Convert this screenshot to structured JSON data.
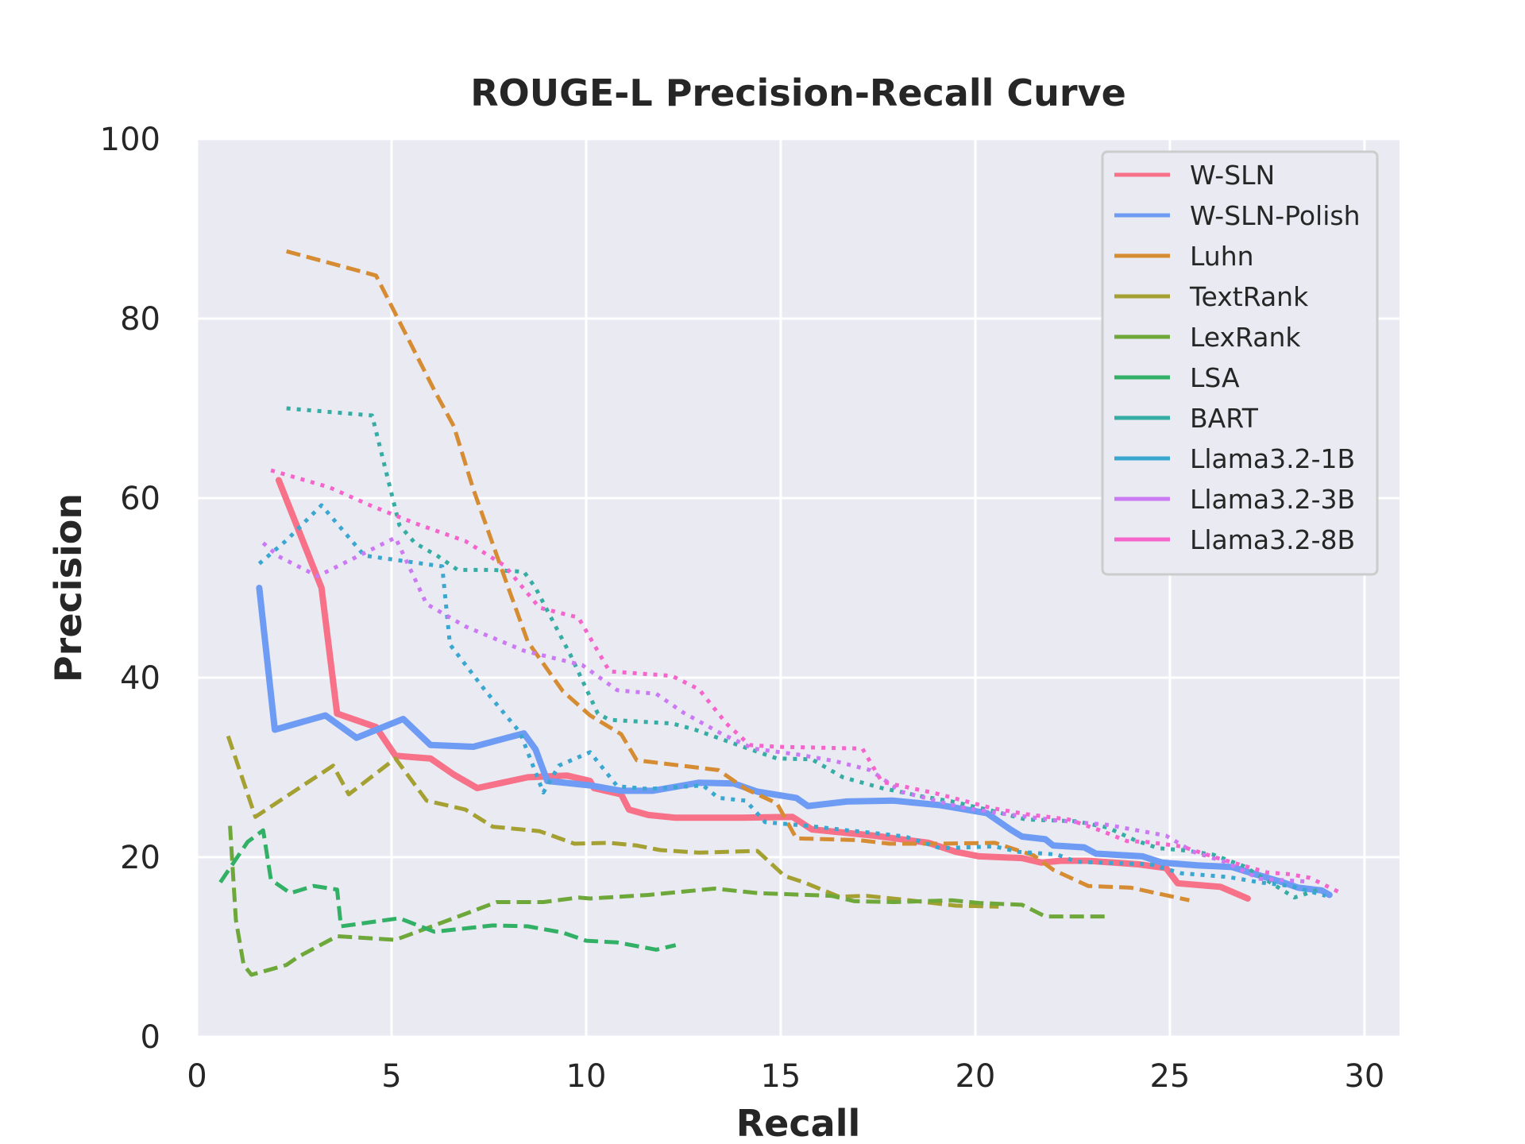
{
  "chart_data": {
    "type": "line",
    "title": "ROUGE-L Precision-Recall Curve",
    "xlabel": "Recall",
    "ylabel": "Precision",
    "xlim": [
      0,
      30.9
    ],
    "ylim": [
      0,
      100
    ],
    "xticks": [
      0,
      5,
      10,
      15,
      20,
      25,
      30
    ],
    "yticks": [
      0,
      20,
      40,
      60,
      80,
      100
    ],
    "grid": true,
    "legend_position": "top-right",
    "background": "#eaeaf2",
    "series": [
      {
        "name": "W-SLN",
        "color": "#f77189",
        "style": "solid",
        "width": 8,
        "points": [
          [
            2.1,
            62
          ],
          [
            3.2,
            50
          ],
          [
            3.6,
            36
          ],
          [
            4.6,
            34.5
          ],
          [
            5.1,
            31.3
          ],
          [
            6,
            31
          ],
          [
            6.6,
            29.2
          ],
          [
            7.2,
            27.7
          ],
          [
            8.5,
            28.9
          ],
          [
            9.5,
            29.1
          ],
          [
            10.1,
            28.5
          ],
          [
            10.2,
            27.7
          ],
          [
            10.9,
            27
          ],
          [
            11.1,
            25.3
          ],
          [
            11.6,
            24.7
          ],
          [
            12.3,
            24.4
          ],
          [
            14,
            24.4
          ],
          [
            15.3,
            24.5
          ],
          [
            15.8,
            23.1
          ],
          [
            17.4,
            22.4
          ],
          [
            18.8,
            21.6
          ],
          [
            19.5,
            20.6
          ],
          [
            20.1,
            20.1
          ],
          [
            21.2,
            19.9
          ],
          [
            21.7,
            19.4
          ],
          [
            22.2,
            19.6
          ],
          [
            22.9,
            19.6
          ],
          [
            24.2,
            19.2
          ],
          [
            24.9,
            18.8
          ],
          [
            25.2,
            17.1
          ],
          [
            26.3,
            16.7
          ],
          [
            27,
            15.4
          ]
        ]
      },
      {
        "name": "W-SLN-Polish",
        "color": "#6e9bf4",
        "style": "solid",
        "width": 8,
        "points": [
          [
            1.6,
            50
          ],
          [
            2,
            34.2
          ],
          [
            3.3,
            35.8
          ],
          [
            4.1,
            33.3
          ],
          [
            5.3,
            35.4
          ],
          [
            6,
            32.5
          ],
          [
            7.1,
            32.3
          ],
          [
            8.4,
            33.8
          ],
          [
            8.7,
            32
          ],
          [
            9,
            28.5
          ],
          [
            10.1,
            28
          ],
          [
            10.9,
            27.4
          ],
          [
            11.7,
            27.4
          ],
          [
            12.9,
            28.3
          ],
          [
            13.8,
            28.2
          ],
          [
            14.4,
            27.3
          ],
          [
            15.4,
            26.6
          ],
          [
            15.7,
            25.7
          ],
          [
            16.7,
            26.2
          ],
          [
            17.9,
            26.3
          ],
          [
            19.1,
            25.8
          ],
          [
            20.3,
            24.9
          ],
          [
            20.9,
            23.1
          ],
          [
            21.2,
            22.3
          ],
          [
            21.8,
            22
          ],
          [
            22,
            21.3
          ],
          [
            22.8,
            21.1
          ],
          [
            23.1,
            20.4
          ],
          [
            24.3,
            20.1
          ],
          [
            24.8,
            19.4
          ],
          [
            25.7,
            19.1
          ],
          [
            26.6,
            18.9
          ],
          [
            27.2,
            18.1
          ],
          [
            27.9,
            17.2
          ],
          [
            28.3,
            16.6
          ],
          [
            28.9,
            16.3
          ],
          [
            29.1,
            15.8
          ]
        ]
      },
      {
        "name": "Luhn",
        "color": "#d58c32",
        "style": "dashed",
        "width": 5,
        "points": [
          [
            2.3,
            87.5
          ],
          [
            4.6,
            84.8
          ],
          [
            6.1,
            72
          ],
          [
            6.6,
            68
          ],
          [
            7.1,
            61
          ],
          [
            8,
            50
          ],
          [
            8.5,
            44
          ],
          [
            9.4,
            38.5
          ],
          [
            10.1,
            35.8
          ],
          [
            10.9,
            33.7
          ],
          [
            11.3,
            30.8
          ],
          [
            13.4,
            29.7
          ],
          [
            14.1,
            27.6
          ],
          [
            14.9,
            26
          ],
          [
            15.4,
            22.1
          ],
          [
            17,
            21.9
          ],
          [
            17.8,
            21.5
          ],
          [
            19.1,
            21.5
          ],
          [
            20.5,
            21.6
          ],
          [
            21.5,
            20.2
          ],
          [
            22,
            18.6
          ],
          [
            22.9,
            16.8
          ],
          [
            24,
            16.6
          ],
          [
            25.5,
            15.2
          ]
        ]
      },
      {
        "name": "TextRank",
        "color": "#a4a031",
        "style": "dashed",
        "width": 5,
        "points": [
          [
            0.8,
            33.5
          ],
          [
            1.5,
            24.5
          ],
          [
            3.5,
            30.2
          ],
          [
            3.9,
            27
          ],
          [
            5.1,
            31
          ],
          [
            5.9,
            26.3
          ],
          [
            6.9,
            25.3
          ],
          [
            7.6,
            23.4
          ],
          [
            8.8,
            22.9
          ],
          [
            9.7,
            21.5
          ],
          [
            10.6,
            21.6
          ],
          [
            11.3,
            21.3
          ],
          [
            11.9,
            20.8
          ],
          [
            12.9,
            20.5
          ],
          [
            14.4,
            20.7
          ],
          [
            15.1,
            17.9
          ],
          [
            15.6,
            17.2
          ],
          [
            16.5,
            15.6
          ],
          [
            17.2,
            15.7
          ],
          [
            18.3,
            15.2
          ],
          [
            19.5,
            14.6
          ],
          [
            20.6,
            14.5
          ]
        ]
      },
      {
        "name": "LexRank",
        "color": "#6fa83a",
        "style": "dashed",
        "width": 5,
        "points": [
          [
            0.85,
            23.5
          ],
          [
            1.0,
            13
          ],
          [
            1.2,
            8
          ],
          [
            1.4,
            6.9
          ],
          [
            2.3,
            8
          ],
          [
            2.6,
            8.9
          ],
          [
            3.6,
            11.2
          ],
          [
            5.1,
            10.8
          ],
          [
            6.6,
            13.2
          ],
          [
            7.7,
            15
          ],
          [
            8.9,
            15
          ],
          [
            9.8,
            15.5
          ],
          [
            10.1,
            15.4
          ],
          [
            11.6,
            15.8
          ],
          [
            13.3,
            16.5
          ],
          [
            14.4,
            16
          ],
          [
            16.3,
            15.7
          ],
          [
            16.9,
            15.1
          ],
          [
            17.9,
            15
          ],
          [
            19.4,
            15.2
          ],
          [
            20.1,
            14.9
          ],
          [
            21.2,
            14.7
          ],
          [
            21.8,
            13.4
          ],
          [
            23.4,
            13.4
          ]
        ]
      },
      {
        "name": "LSA",
        "color": "#32b166",
        "style": "dashed",
        "width": 5,
        "points": [
          [
            0.6,
            17.2
          ],
          [
            1.3,
            21.7
          ],
          [
            1.7,
            23
          ],
          [
            1.9,
            17.5
          ],
          [
            2.4,
            16
          ],
          [
            3,
            16.8
          ],
          [
            3.6,
            16.4
          ],
          [
            3.7,
            12.3
          ],
          [
            5.2,
            13.2
          ],
          [
            6.1,
            11.7
          ],
          [
            7.6,
            12.4
          ],
          [
            8.5,
            12.3
          ],
          [
            9.4,
            11.6
          ],
          [
            10,
            10.7
          ],
          [
            10.8,
            10.5
          ],
          [
            11.8,
            9.7
          ],
          [
            12.3,
            10.2
          ]
        ]
      },
      {
        "name": "BART",
        "color": "#36ada4",
        "style": "dotted",
        "width": 5,
        "points": [
          [
            2.3,
            70
          ],
          [
            4.5,
            69.2
          ],
          [
            5.2,
            57
          ],
          [
            5.6,
            55
          ],
          [
            6.2,
            53.5
          ],
          [
            6.7,
            52
          ],
          [
            7.6,
            52
          ],
          [
            8.4,
            51.8
          ],
          [
            8.7,
            50
          ],
          [
            9.6,
            42.5
          ],
          [
            10.3,
            36
          ],
          [
            10.6,
            35.3
          ],
          [
            12.2,
            34.9
          ],
          [
            12.8,
            34.2
          ],
          [
            13.9,
            32.5
          ],
          [
            14.9,
            31
          ],
          [
            15.8,
            30.9
          ],
          [
            16.6,
            28.9
          ],
          [
            17.6,
            27.7
          ],
          [
            18.6,
            26.8
          ],
          [
            19.4,
            26.2
          ],
          [
            20.4,
            25.2
          ],
          [
            21.3,
            24.2
          ],
          [
            22.6,
            24
          ],
          [
            23.4,
            23.3
          ],
          [
            24.1,
            21.9
          ],
          [
            24.7,
            21
          ],
          [
            25.3,
            20.8
          ],
          [
            26.1,
            20.3
          ],
          [
            26.9,
            19
          ],
          [
            27.5,
            17.4
          ],
          [
            28.2,
            15.5
          ],
          [
            28.9,
            16.5
          ]
        ]
      },
      {
        "name": "Llama3.2-1B",
        "color": "#39a7d0",
        "style": "dotted",
        "width": 5,
        "points": [
          [
            1.6,
            52.7
          ],
          [
            2.3,
            55.3
          ],
          [
            3.2,
            59.2
          ],
          [
            4.3,
            53.6
          ],
          [
            6.3,
            52.4
          ],
          [
            6.5,
            43.7
          ],
          [
            7.4,
            38.6
          ],
          [
            8.3,
            33.9
          ],
          [
            8.9,
            27.2
          ],
          [
            9.3,
            30.2
          ],
          [
            10.1,
            31.7
          ],
          [
            10.8,
            27.9
          ],
          [
            11.6,
            27.6
          ],
          [
            13,
            28
          ],
          [
            13.4,
            26.6
          ],
          [
            14.1,
            26.3
          ],
          [
            14.6,
            23.9
          ],
          [
            15.7,
            23.5
          ],
          [
            16.7,
            23
          ],
          [
            17.6,
            22.6
          ],
          [
            18.2,
            22.3
          ],
          [
            19.1,
            21
          ],
          [
            20.5,
            21.2
          ],
          [
            21.1,
            20.6
          ],
          [
            22.1,
            20.3
          ],
          [
            22.6,
            19.5
          ],
          [
            24.5,
            19.2
          ],
          [
            25.3,
            18.2
          ],
          [
            26.5,
            17.8
          ],
          [
            27.3,
            17.2
          ],
          [
            28.1,
            16.8
          ],
          [
            29,
            15.7
          ]
        ]
      },
      {
        "name": "Llama3.2-3B",
        "color": "#cc7af4",
        "style": "dotted",
        "width": 5,
        "points": [
          [
            1.7,
            55
          ],
          [
            2.1,
            53.5
          ],
          [
            3.1,
            51.3
          ],
          [
            5.1,
            55.6
          ],
          [
            5.9,
            48.2
          ],
          [
            6.9,
            45.7
          ],
          [
            8.4,
            43
          ],
          [
            9.9,
            41.4
          ],
          [
            10.8,
            38.6
          ],
          [
            11.8,
            38.2
          ],
          [
            12.5,
            36.1
          ],
          [
            13.5,
            33.7
          ],
          [
            14.3,
            32.1
          ],
          [
            15.5,
            31.4
          ],
          [
            16.4,
            30.7
          ],
          [
            17.3,
            29.7
          ],
          [
            18.1,
            27.3
          ],
          [
            19.6,
            25.6
          ],
          [
            20.6,
            24.9
          ],
          [
            22.1,
            24.1
          ],
          [
            23.4,
            23.6
          ],
          [
            24.9,
            22.4
          ],
          [
            25.6,
            20.6
          ],
          [
            26.4,
            19.5
          ],
          [
            27.3,
            17.6
          ],
          [
            28.5,
            17.3
          ]
        ]
      },
      {
        "name": "Llama3.2-8B",
        "color": "#f565cc",
        "style": "dotted",
        "width": 5,
        "points": [
          [
            1.9,
            63.1
          ],
          [
            3.4,
            61.2
          ],
          [
            4.5,
            59.1
          ],
          [
            5.6,
            57.2
          ],
          [
            6.9,
            55.2
          ],
          [
            7.9,
            52.5
          ],
          [
            8.8,
            47.8
          ],
          [
            9.8,
            46.7
          ],
          [
            10.6,
            40.7
          ],
          [
            12.2,
            40.2
          ],
          [
            12.9,
            38.7
          ],
          [
            13.6,
            34.9
          ],
          [
            14.2,
            32.5
          ],
          [
            14.9,
            32.3
          ],
          [
            17.1,
            32.1
          ],
          [
            17.6,
            28.4
          ],
          [
            19,
            27.1
          ],
          [
            20.4,
            25.5
          ],
          [
            21.3,
            24.8
          ],
          [
            22.4,
            24.2
          ],
          [
            23.2,
            23
          ],
          [
            23.9,
            21.8
          ],
          [
            24.4,
            21.7
          ],
          [
            25.3,
            21.2
          ],
          [
            26.3,
            19.8
          ],
          [
            27.5,
            18.3
          ],
          [
            28.1,
            18.1
          ],
          [
            28.6,
            17.7
          ],
          [
            29.4,
            16
          ]
        ]
      }
    ]
  }
}
